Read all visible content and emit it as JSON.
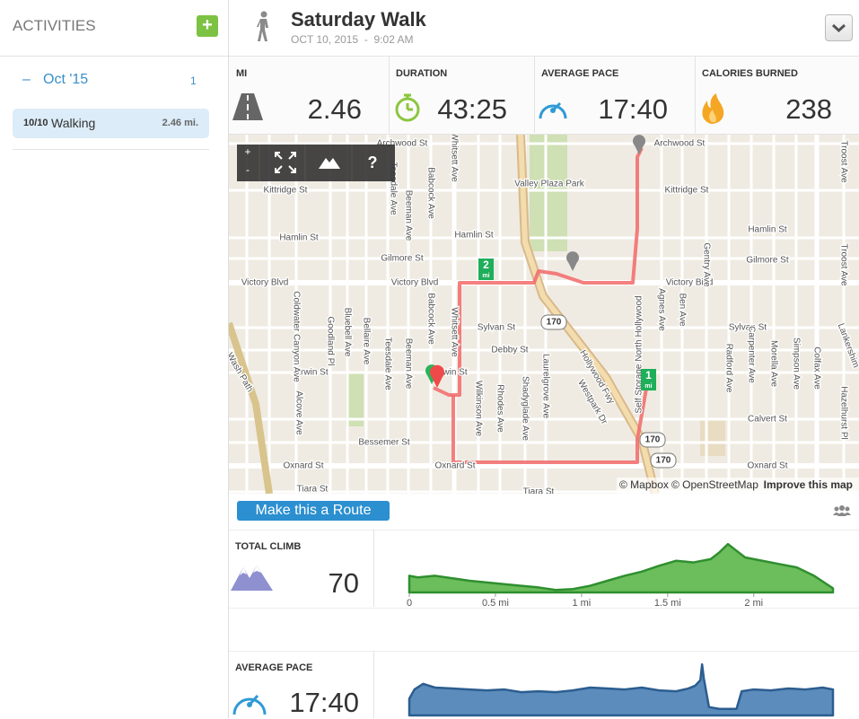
{
  "sidebar": {
    "title": "ACTIVITIES",
    "add_button": "+",
    "month": {
      "toggle": "–",
      "label": "Oct '15",
      "count": "1"
    },
    "activity": {
      "date": "10/10",
      "name": "Walking",
      "distance": "2.46 mi."
    }
  },
  "header": {
    "title": "Saturday Walk",
    "date": "OCT 10, 2015",
    "separator": "-",
    "time": "9:02 AM"
  },
  "stats": [
    {
      "label": "MI",
      "value": "2.46"
    },
    {
      "label": "DURATION",
      "value": "43:25"
    },
    {
      "label": "AVERAGE PACE",
      "value": "17:40"
    },
    {
      "label": "CALORIES BURNED",
      "value": "238"
    }
  ],
  "map": {
    "zoom_in": "+",
    "zoom_out": "-",
    "help": "?",
    "labels": [
      "Archwood St",
      "Archwood St",
      "Kittridge St",
      "Kittridge St",
      "Valley Plaza Park",
      "Hamlin St",
      "Hamlin St",
      "Hamlin St",
      "Gilmore St",
      "Gilmore St",
      "Victory Blvd",
      "Victory Blvd",
      "Victory Blvd",
      "Sylvan St",
      "Sylvan St",
      "Debby St",
      "Erwin St",
      "Erwin St",
      "Calvert St",
      "Bessemer St",
      "Oxnard St",
      "Oxnard St",
      "Oxnard St",
      "Tiara St",
      "Tiara St",
      "Whitsett Ave",
      "Babcock Ave",
      "Beeman Ave",
      "Teesdale Ave",
      "Whitsett Ave",
      "Babcock Ave",
      "Beeman Ave",
      "Teesdale Ave",
      "Bellaire Ave",
      "Bluebell Ave",
      "Goodland Pl",
      "Coldwater Canyon Ave",
      "Alcove Ave",
      "Wilkinson Ave",
      "Rhodes Ave",
      "Shadyglade Ave",
      "Laurelgrove Ave",
      "Agnes Ave",
      "Ben Ave",
      "Gentry Ave",
      "Radford Ave",
      "Carpenter Ave",
      "Morella Ave",
      "Simpson Ave",
      "Colfax Ave",
      "Troost Ave",
      "Troost Ave",
      "Hazelhurst Pl",
      "Lankershim",
      "Hollywood Fwy",
      "Westpark Dr",
      "Self Storage North Hollywood",
      "Wash Path"
    ],
    "shields": [
      "170",
      "170",
      "170"
    ],
    "markers": [
      {
        "number": "2",
        "unit": "mi"
      },
      {
        "number": "1",
        "unit": "mi"
      }
    ],
    "attribution": {
      "mapbox": "© Mapbox",
      "osm": "© OpenStreetMap",
      "improve": "Improve this map"
    }
  },
  "route_button": "Make this a Route",
  "climb": {
    "label": "TOTAL CLIMB",
    "value": "70",
    "chart": {
      "type": "area",
      "color": "#6cbd5b",
      "x": [
        0,
        0.05,
        0.15,
        0.25,
        0.35,
        0.45,
        0.55,
        0.65,
        0.75,
        0.85,
        0.95,
        1.05,
        1.15,
        1.25,
        1.35,
        1.45,
        1.55,
        1.65,
        1.75,
        1.8,
        1.85,
        1.9,
        1.95,
        2.05,
        2.15,
        2.25,
        2.35,
        2.46
      ],
      "values": [
        20,
        18,
        20,
        17,
        14,
        12,
        10,
        8,
        6,
        3,
        4,
        8,
        14,
        20,
        25,
        32,
        38,
        36,
        40,
        48,
        58,
        50,
        42,
        38,
        34,
        30,
        20,
        5
      ],
      "xlim": [
        0,
        2.46
      ],
      "ylim": [
        0,
        70
      ],
      "xticks": [
        {
          "value": 0,
          "label": "0"
        },
        {
          "value": 0.5,
          "label": "0.5 mi"
        },
        {
          "value": 1,
          "label": "1 mi"
        },
        {
          "value": 1.5,
          "label": "1.5 mi"
        },
        {
          "value": 2,
          "label": "2 mi"
        }
      ]
    }
  },
  "pace": {
    "label": "AVERAGE PACE",
    "value": "17:40",
    "chart": {
      "type": "area",
      "color": "#5b8cbc",
      "x": [
        0,
        0.03,
        0.08,
        0.15,
        0.25,
        0.35,
        0.45,
        0.55,
        0.65,
        0.75,
        0.85,
        0.95,
        1.05,
        1.15,
        1.25,
        1.35,
        1.45,
        1.55,
        1.62,
        1.66,
        1.69,
        1.7,
        1.71,
        1.74,
        1.8,
        1.9,
        1.93,
        2.0,
        2.1,
        2.2,
        2.3,
        2.4,
        2.46
      ],
      "values": [
        18,
        28,
        34,
        30,
        29,
        28,
        27,
        28,
        25,
        26,
        25,
        27,
        30,
        29,
        28,
        30,
        27,
        26,
        29,
        32,
        38,
        55,
        40,
        9,
        7,
        7,
        26,
        28,
        27,
        29,
        28,
        30,
        28
      ],
      "xlim": [
        0,
        2.46
      ],
      "ylim": [
        0,
        60
      ]
    }
  }
}
